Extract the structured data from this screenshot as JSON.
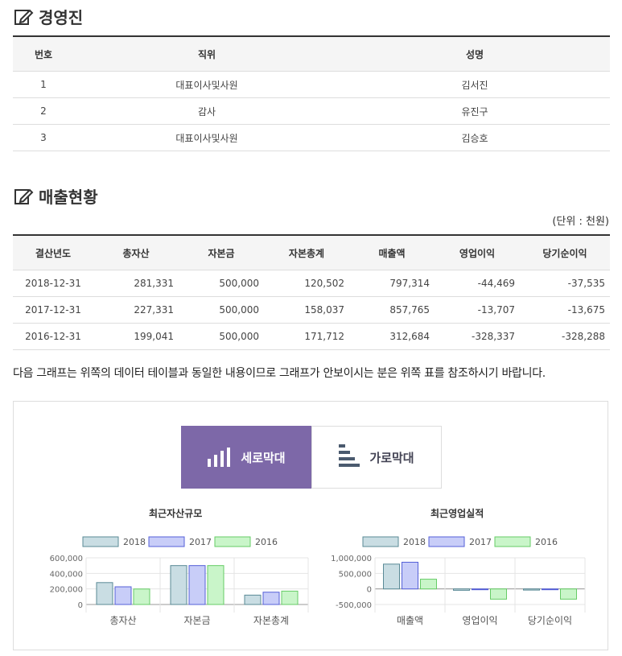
{
  "executives": {
    "title": "경영진",
    "columns": [
      "번호",
      "직위",
      "성명"
    ],
    "rows": [
      [
        "1",
        "대표이사및사원",
        "김서진"
      ],
      [
        "2",
        "감사",
        "유진구"
      ],
      [
        "3",
        "대표이사및사원",
        "김승호"
      ]
    ]
  },
  "sales": {
    "title": "매출현황",
    "unit": "(단위 : 천원)",
    "columns": [
      "결산년도",
      "총자산",
      "자본금",
      "자본총계",
      "매출액",
      "영업이익",
      "당기순이익"
    ],
    "rows": [
      [
        "2018-12-31",
        "281,331",
        "500,000",
        "120,502",
        "797,314",
        "-44,469",
        "-37,535"
      ],
      [
        "2017-12-31",
        "227,331",
        "500,000",
        "158,037",
        "857,765",
        "-13,707",
        "-13,675"
      ],
      [
        "2016-12-31",
        "199,041",
        "500,000",
        "171,712",
        "312,684",
        "-328,337",
        "-328,288"
      ]
    ]
  },
  "notice": "다음 그래프는 위쪽의 데이터 테이블과 동일한 내용이므로 그래프가 안보이시는 분은 위쪽 표를 참조하시기 바랍니다.",
  "tabs": {
    "vertical": "세로막대",
    "horizontal": "가로막대"
  },
  "colors": {
    "accent": "#7d68a8",
    "s2018": "#c9dde3",
    "s2017": "#c8cdf8",
    "s2016": "#c9f5c9",
    "s2018_border": "#5a8a96",
    "s2017_border": "#5560d8",
    "s2016_border": "#66cc66"
  },
  "chart_data": [
    {
      "type": "bar",
      "title": "최근자산규모",
      "categories": [
        "총자산",
        "자본금",
        "자본총계"
      ],
      "series": [
        {
          "name": "2018",
          "values": [
            281331,
            500000,
            120502
          ]
        },
        {
          "name": "2017",
          "values": [
            227331,
            500000,
            158037
          ]
        },
        {
          "name": "2016",
          "values": [
            199041,
            500000,
            171712
          ]
        }
      ],
      "ylim": [
        0,
        600000
      ],
      "yticks": [
        "600,000",
        "400,000",
        "200,000",
        "0"
      ],
      "legend": "top"
    },
    {
      "type": "bar",
      "title": "최근영업실적",
      "categories": [
        "매출액",
        "영업이익",
        "당기순이익"
      ],
      "series": [
        {
          "name": "2018",
          "values": [
            797314,
            -44469,
            -37535
          ]
        },
        {
          "name": "2017",
          "values": [
            857765,
            -13707,
            -13675
          ]
        },
        {
          "name": "2016",
          "values": [
            312684,
            -328337,
            -328288
          ]
        }
      ],
      "ylim": [
        -500000,
        1000000
      ],
      "yticks": [
        "1,000,000",
        "500,000",
        "0",
        "-500,000"
      ],
      "legend": "top"
    }
  ]
}
